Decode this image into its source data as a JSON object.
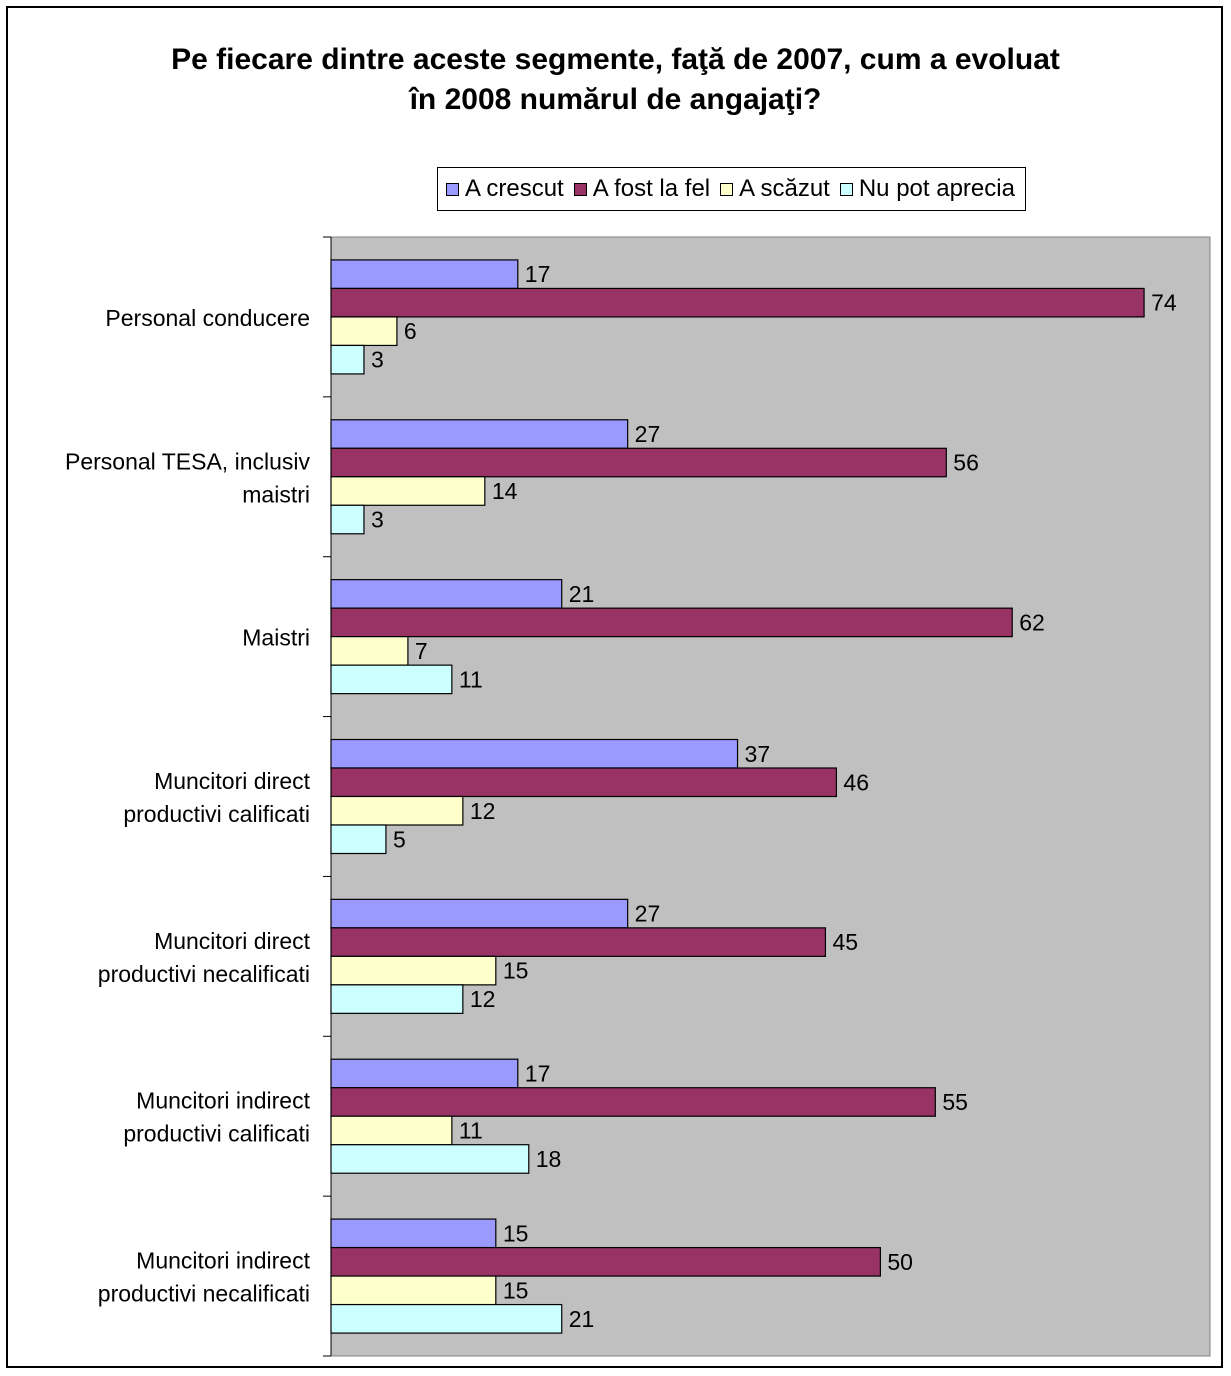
{
  "chart_data": {
    "type": "bar",
    "orientation": "horizontal",
    "title_lines": [
      "Pe fiecare dintre aceste segmente, faţă de 2007, cum a evoluat",
      "în 2008 numărul de angajaţi?"
    ],
    "categories": [
      [
        "Personal conducere"
      ],
      [
        "Personal TESA, inclusiv",
        "maistri"
      ],
      [
        "Maistri"
      ],
      [
        "Muncitori direct",
        "productivi calificati"
      ],
      [
        "Muncitori direct",
        "productivi necalificati"
      ],
      [
        "Muncitori indirect",
        "productivi calificati"
      ],
      [
        "Muncitori indirect",
        "productivi necalificati"
      ]
    ],
    "series": [
      {
        "name": "A crescut",
        "color": "#9999ff",
        "values": [
          17,
          27,
          21,
          37,
          27,
          17,
          15
        ]
      },
      {
        "name": "A fost la fel",
        "color": "#993366",
        "values": [
          74,
          56,
          62,
          46,
          45,
          55,
          50
        ]
      },
      {
        "name": "A scăzut",
        "color": "#ffffcc",
        "values": [
          6,
          14,
          7,
          12,
          15,
          11,
          15
        ]
      },
      {
        "name": "Nu pot aprecia",
        "color": "#ccffff",
        "values": [
          3,
          3,
          11,
          5,
          12,
          18,
          21
        ]
      }
    ],
    "xlim": [
      0,
      80
    ],
    "grid": false,
    "plot_background": "#c0c0c0",
    "legend_position": "top"
  }
}
